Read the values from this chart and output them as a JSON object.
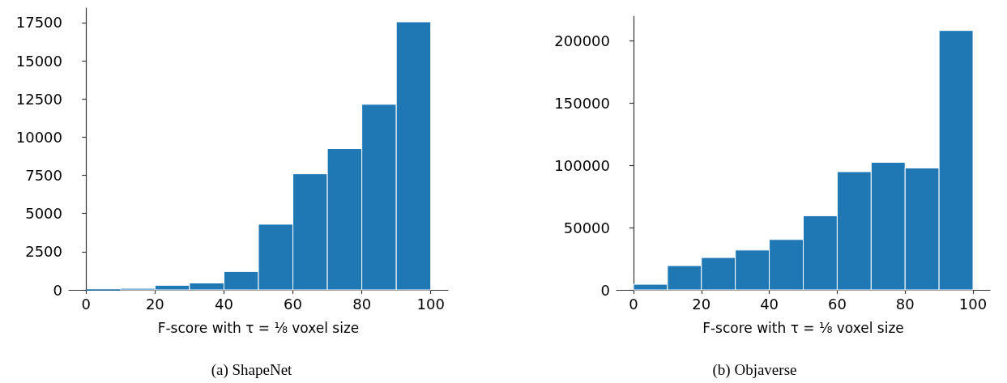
{
  "chart_data": [
    {
      "type": "histogram",
      "title": "(a) ShapeNet",
      "xlabel": "F-score with τ = ⅛ voxel size",
      "bins": [
        0,
        10,
        20,
        30,
        40,
        50,
        60,
        70,
        80,
        90,
        100
      ],
      "values": [
        0,
        100,
        300,
        450,
        1200,
        4300,
        7600,
        9250,
        12150,
        17550
      ],
      "color": "#1f77b4",
      "xlim": [
        -5,
        105
      ],
      "xticks": [
        0,
        20,
        40,
        60,
        80,
        100
      ],
      "ylim": [
        0,
        18450
      ],
      "yticks": [
        0,
        2500,
        5000,
        7500,
        10000,
        12500,
        15000,
        17500
      ],
      "grid": false
    },
    {
      "type": "histogram",
      "title": "(b) Objaverse",
      "xlabel": "F-score with τ = ⅛ voxel size",
      "bins": [
        0,
        10,
        20,
        30,
        40,
        50,
        60,
        70,
        80,
        90,
        100
      ],
      "values": [
        4500,
        19500,
        26000,
        32000,
        40500,
        59500,
        95000,
        102500,
        98000,
        208500
      ],
      "color": "#1f77b4",
      "xlim": [
        -5,
        105
      ],
      "xticks": [
        0,
        20,
        40,
        60,
        80,
        100
      ],
      "ylim": [
        0,
        220000
      ],
      "yticks": [
        0,
        50000,
        100000,
        150000,
        200000
      ],
      "grid": false
    }
  ]
}
